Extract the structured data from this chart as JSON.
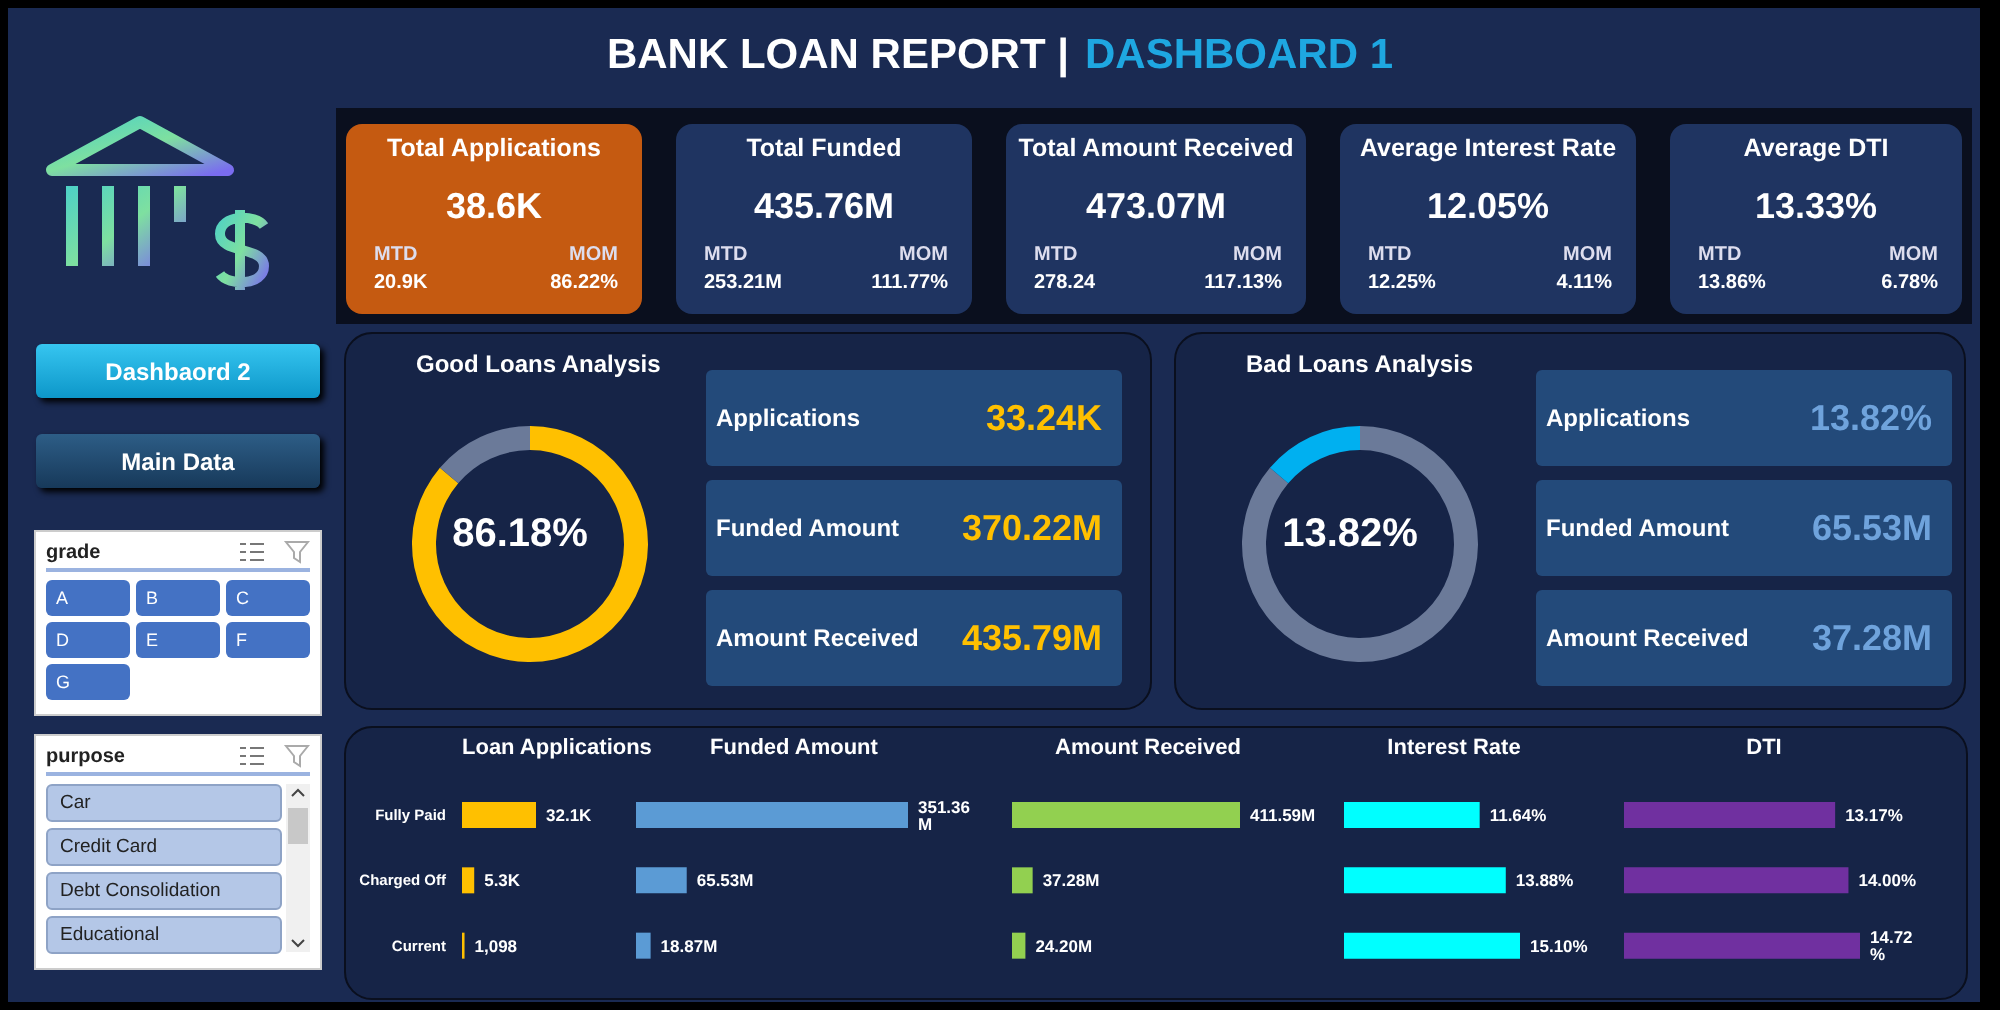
{
  "chart_data": [
    {
      "type": "other",
      "title": "BANK LOAN REPORT |",
      "subtitle": "DASHBOARD 1"
    },
    {
      "type": "other",
      "title": "Total Applications",
      "color": "#c55a11",
      "annotations": [
        "38.6K",
        "MTD",
        "20.9K",
        "MOM",
        "86.22%"
      ]
    },
    {
      "type": "other",
      "title": "Total Funded",
      "color": "#1f3461",
      "annotations": [
        "435.76M",
        "MTD",
        "253.21M",
        "MOM",
        "111.77%"
      ]
    },
    {
      "type": "other",
      "title": "Total Amount Received",
      "color": "#1f3461",
      "annotations": [
        "473.07M",
        "MTD",
        "278.24",
        "MOM",
        "117.13%"
      ]
    },
    {
      "type": "other",
      "title": "Average Interest Rate",
      "color": "#1f3461",
      "annotations": [
        "12.05%",
        "MTD",
        "12.25%",
        "MOM",
        "4.11%"
      ]
    },
    {
      "type": "other",
      "title": "Average DTI",
      "color": "#1f3461",
      "annotations": [
        "13.33%",
        "MTD",
        "13.86%",
        "MOM",
        "6.78%"
      ]
    },
    {
      "type": "other",
      "annotations": [
        "Dashbaord 2",
        "Main Data"
      ]
    },
    {
      "type": "other",
      "title": "grade",
      "annotations": [
        "A",
        "B",
        "C",
        "D",
        "E",
        "F",
        "G"
      ]
    },
    {
      "type": "other",
      "title": "purpose",
      "annotations": [
        "Car",
        "Credit Card",
        "Debt Consolidation",
        "Educational"
      ]
    },
    {
      "type": "donut",
      "title": "Good Loans Analysis",
      "categories": [
        null,
        null
      ],
      "values": [
        86.18,
        13.82
      ],
      "colors": [
        "#ffc000",
        "#6b7a99"
      ],
      "annotations": [
        "86.18%"
      ]
    },
    {
      "type": "other",
      "color": "#ffc000",
      "annotations": [
        "Applications",
        "33.24K",
        "Funded Amount",
        "370.22M",
        "Amount Received",
        "435.79M"
      ]
    },
    {
      "type": "donut",
      "title": "Bad Loans Analysis",
      "categories": [
        null,
        null
      ],
      "values": [
        86.18,
        13.82
      ],
      "colors": [
        "#6b7a99",
        "#00b0f0"
      ],
      "annotations": [
        "13.82%"
      ]
    },
    {
      "type": "other",
      "color": "#6fa3dc",
      "annotations": [
        "Applications",
        "13.82%",
        "Funded Amount",
        "65.53M",
        "Amount Received",
        "37.28M"
      ]
    },
    {
      "type": "bar",
      "orientation": "horizontal",
      "title": "Loan Applications",
      "categories": [
        "Fully Paid",
        "Charged Off",
        "Current"
      ],
      "values": [
        32100,
        5300,
        1098
      ],
      "value_labels": [
        "32.1K",
        "5.3K",
        "1,098"
      ],
      "color": "#ffc000"
    },
    {
      "type": "bar",
      "orientation": "horizontal",
      "title": "Funded Amount",
      "values": [
        351.36,
        65.53,
        18.87
      ],
      "value_labels": [
        "351.36 M",
        "65.53M",
        "18.87M"
      ],
      "color": "#5b9bd5",
      "tick_labels": false
    },
    {
      "type": "bar",
      "orientation": "horizontal",
      "title": "Amount Received",
      "values": [
        411.59,
        37.28,
        24.2
      ],
      "value_labels": [
        "411.59M",
        "37.28M",
        "24.20M"
      ],
      "color": "#92d050",
      "tick_labels": false
    },
    {
      "type": "bar",
      "orientation": "horizontal",
      "title": "Interest Rate",
      "values": [
        11.64,
        13.88,
        15.1
      ],
      "value_labels": [
        "11.64%",
        "13.88%",
        "15.10%"
      ],
      "color": "#00ffff",
      "tick_labels": false
    },
    {
      "type": "bar",
      "orientation": "horizontal",
      "title": "DTI",
      "values": [
        13.17,
        14.0,
        14.72
      ],
      "value_labels": [
        "13.17%",
        "14.00%",
        "14.72 %"
      ],
      "color": "#7030a0",
      "tick_labels": false
    }
  ]
}
